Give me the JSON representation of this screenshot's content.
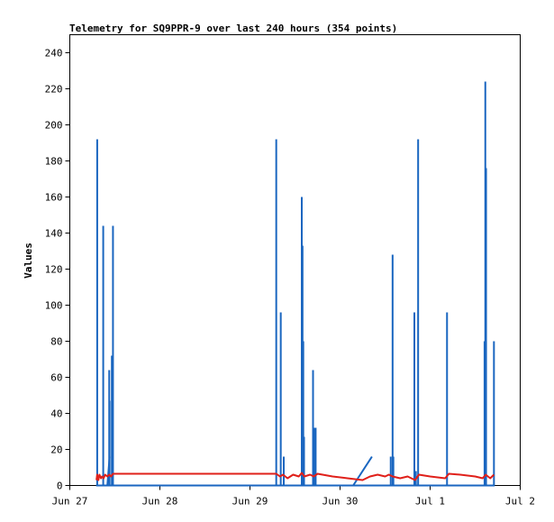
{
  "chart_data": {
    "type": "line",
    "title": "Telemetry for SQ9PPR-9 over last 240 hours (354 points)",
    "xlabel": "",
    "ylabel": "Values",
    "xlim_hours": [
      0,
      120
    ],
    "ylim": [
      0,
      250
    ],
    "x_ticks": [
      {
        "label": "Jun 27",
        "hour": 0
      },
      {
        "label": "Jun 28",
        "hour": 24
      },
      {
        "label": "Jun 29",
        "hour": 48
      },
      {
        "label": "Jun 30",
        "hour": 72
      },
      {
        "label": "Jul 1",
        "hour": 96
      },
      {
        "label": "Jul 2",
        "hour": 120
      }
    ],
    "y_ticks": [
      0,
      20,
      40,
      60,
      80,
      100,
      120,
      140,
      160,
      180,
      200,
      220,
      240
    ],
    "grid": false,
    "series": [
      {
        "color": "#1a66c0",
        "spikes": [
          [
            7.3,
            192
          ],
          [
            8.9,
            144
          ],
          [
            10.5,
            64
          ],
          [
            10.6,
            47
          ],
          [
            11.2,
            72
          ],
          [
            11.5,
            144
          ],
          [
            55.0,
            192
          ],
          [
            56.2,
            96
          ],
          [
            57.0,
            16
          ],
          [
            61.8,
            160
          ],
          [
            62.0,
            133
          ],
          [
            62.2,
            80
          ],
          [
            62.4,
            27
          ],
          [
            64.8,
            64
          ],
          [
            65.2,
            32
          ],
          [
            65.5,
            32
          ],
          [
            85.5,
            16
          ],
          [
            86.0,
            128
          ],
          [
            86.2,
            16
          ],
          [
            91.8,
            96
          ],
          [
            92.2,
            8
          ],
          [
            92.8,
            192
          ],
          [
            100.5,
            96
          ],
          [
            110.5,
            80
          ],
          [
            110.7,
            224
          ],
          [
            110.9,
            176
          ],
          [
            113.0,
            80
          ]
        ],
        "ramps": [
          [
            [
              10.0,
              0
            ],
            [
              10.6,
              16
            ]
          ],
          [
            [
              75.5,
              0
            ],
            [
              80.5,
              16
            ]
          ]
        ]
      },
      {
        "color": "#e0201a",
        "values": [
          [
            7.1,
            3
          ],
          [
            7.3,
            6
          ],
          [
            7.6,
            3
          ],
          [
            7.9,
            6
          ],
          [
            8.3,
            4
          ],
          [
            8.6,
            5
          ],
          [
            9.0,
            4
          ],
          [
            9.4,
            6
          ],
          [
            10.0,
            5
          ],
          [
            10.5,
            6
          ],
          [
            11.0,
            5
          ],
          [
            11.5,
            6.5
          ],
          [
            12.0,
            6.5
          ],
          [
            30,
            6.5
          ],
          [
            55.0,
            6.5
          ],
          [
            56.0,
            5
          ],
          [
            56.8,
            6
          ],
          [
            58.0,
            4
          ],
          [
            59.5,
            6
          ],
          [
            61.0,
            5
          ],
          [
            61.8,
            7
          ],
          [
            62.5,
            5
          ],
          [
            64.0,
            6
          ],
          [
            65.0,
            5
          ],
          [
            66.0,
            6.5
          ],
          [
            70.0,
            5
          ],
          [
            74.0,
            4
          ],
          [
            78.0,
            3
          ],
          [
            80.0,
            5
          ],
          [
            82.0,
            6
          ],
          [
            84.0,
            5
          ],
          [
            85.0,
            6
          ],
          [
            86.0,
            5
          ],
          [
            88.0,
            4
          ],
          [
            90.0,
            5
          ],
          [
            92.0,
            3
          ],
          [
            93.0,
            6
          ],
          [
            96.0,
            5
          ],
          [
            100.0,
            4
          ],
          [
            101.0,
            6.5
          ],
          [
            104.0,
            6
          ],
          [
            108.0,
            5
          ],
          [
            110.0,
            4
          ],
          [
            110.8,
            6
          ],
          [
            112.0,
            4
          ],
          [
            113.0,
            6
          ]
        ]
      }
    ]
  }
}
